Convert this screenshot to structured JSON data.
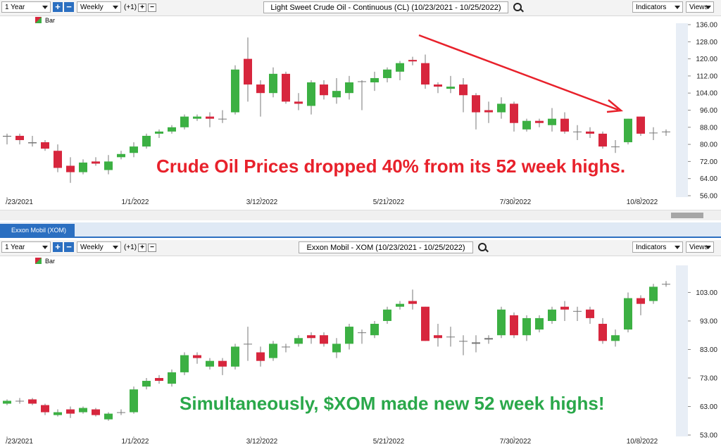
{
  "ui": {
    "period": "1 Year",
    "interval": "Weekly",
    "offset": "(+1)",
    "indicators": "Indicators",
    "views": "Views",
    "tab": "Exxon Mobil (XOM)"
  },
  "chart_data": [
    {
      "type": "candlestick",
      "title": "Light Sweet Crude Oil - Continuous (CL) (10/23/2021 - 10/25/2022)",
      "annotation": "Crude Oil Prices dropped 40% from its 52 week highs.",
      "series_name": "Bar",
      "up_color": "#3cb043",
      "down_color": "#d7263d",
      "categories": [
        "/23/2021",
        null,
        null,
        null,
        null,
        null,
        null,
        null,
        null,
        null,
        "1/1/2022",
        null,
        null,
        null,
        null,
        null,
        null,
        null,
        null,
        null,
        "3/12/2022",
        null,
        null,
        null,
        null,
        null,
        null,
        null,
        null,
        null,
        "5/21/2022",
        null,
        null,
        null,
        null,
        null,
        null,
        null,
        null,
        null,
        "7/30/2022",
        null,
        null,
        null,
        null,
        null,
        null,
        null,
        null,
        null,
        "10/8/2022",
        null,
        null
      ],
      "open": [
        84,
        84,
        81,
        81,
        77,
        70,
        67,
        72,
        68,
        74,
        76,
        79,
        85,
        86,
        88,
        92,
        93,
        92,
        95,
        120,
        108,
        104,
        113,
        100,
        98,
        108,
        102,
        104,
        109.5,
        109,
        111,
        114,
        119.5,
        118,
        108,
        106,
        108,
        103,
        96,
        95,
        99,
        87,
        91,
        89,
        92,
        86,
        86,
        85,
        79,
        81,
        93,
        85.5,
        86
      ],
      "high": [
        85,
        85,
        84,
        82,
        80,
        74,
        73,
        74,
        75,
        77,
        81,
        85,
        87,
        89,
        94,
        94,
        95,
        96,
        117,
        130,
        110,
        116,
        114,
        104,
        110,
        110,
        111,
        112,
        110,
        114,
        116,
        119,
        121,
        122,
        109,
        112,
        111,
        104,
        100,
        102,
        100,
        92,
        92,
        97,
        95,
        89,
        88,
        86,
        82,
        92,
        93,
        88,
        87
      ],
      "low": [
        80,
        80,
        79,
        77,
        67,
        62,
        66,
        70,
        66,
        73,
        74,
        78,
        83,
        85,
        87,
        91,
        88,
        90,
        94,
        100,
        93,
        102,
        99,
        96,
        94,
        101,
        99,
        101,
        96,
        105,
        109,
        110,
        117,
        106,
        104,
        104,
        95,
        87,
        90,
        92,
        86,
        86,
        88,
        86,
        85,
        82,
        83,
        78,
        76,
        80,
        84,
        82,
        84
      ],
      "close": [
        83.6,
        82,
        80.5,
        78,
        69,
        67,
        71.5,
        71,
        72,
        75.5,
        79,
        84,
        86,
        88,
        93,
        93,
        92,
        92,
        115,
        108,
        104,
        113,
        100,
        99,
        109,
        103,
        105,
        109,
        109.5,
        111,
        115,
        118,
        118.8,
        108,
        107,
        107,
        103,
        95,
        95,
        99,
        90,
        91,
        90,
        92,
        86,
        86,
        85,
        79,
        79,
        92,
        85,
        85.5,
        86
      ],
      "ylim": [
        56,
        136
      ],
      "yticks": [
        {
          "value": 56,
          "label": "56.00"
        },
        {
          "value": 64,
          "label": "64.00"
        },
        {
          "value": 72,
          "label": "72.00"
        },
        {
          "value": 80,
          "label": "80.00"
        },
        {
          "value": 88,
          "label": "88.00"
        },
        {
          "value": 96,
          "label": "96.00"
        },
        {
          "value": 104,
          "label": "104.00"
        },
        {
          "value": 112,
          "label": "112.00"
        },
        {
          "value": 120,
          "label": "120.00"
        },
        {
          "value": 128,
          "label": "128.00"
        },
        {
          "value": 136,
          "label": "136.00"
        }
      ]
    },
    {
      "type": "candlestick",
      "title": "Exxon Mobil - XOM (10/23/2021 - 10/25/2022)",
      "annotation": "Simultaneously, $XOM made new 52 week highs!",
      "series_name": "Bar",
      "up_color": "#3cb043",
      "down_color": "#d7263d",
      "categories": [
        "/23/2021",
        null,
        null,
        null,
        null,
        null,
        null,
        null,
        null,
        null,
        "1/1/2022",
        null,
        null,
        null,
        null,
        null,
        null,
        null,
        null,
        null,
        "3/12/2022",
        null,
        null,
        null,
        null,
        null,
        null,
        null,
        null,
        null,
        "5/21/2022",
        null,
        null,
        null,
        null,
        null,
        null,
        null,
        null,
        null,
        "7/30/2022",
        null,
        null,
        null,
        null,
        null,
        null,
        null,
        null,
        null,
        "10/8/2022",
        null,
        null
      ],
      "open": [
        64,
        65,
        65.5,
        63.5,
        60,
        62,
        61,
        62,
        58.5,
        61,
        61,
        70,
        73,
        71,
        75,
        81,
        77,
        79,
        77,
        85,
        82,
        80,
        84,
        85,
        88,
        88,
        82,
        85,
        89,
        88,
        93,
        98,
        100,
        98,
        88,
        87.5,
        86,
        85.5,
        86.5,
        88,
        95,
        88,
        90,
        93,
        98,
        96.5,
        97,
        92,
        86,
        90,
        101,
        100,
        106
      ],
      "high": [
        65.5,
        66,
        66,
        64,
        62,
        63,
        63,
        62.5,
        61,
        62,
        70,
        73,
        74,
        76,
        82,
        82,
        80,
        80,
        85,
        91,
        84,
        86,
        85,
        88,
        89,
        89,
        87,
        92,
        90,
        93,
        98,
        100,
        104,
        98,
        92,
        91,
        88,
        88,
        88,
        98,
        96,
        95,
        95,
        98,
        100,
        98,
        98,
        94,
        90,
        103,
        102,
        106,
        107
      ],
      "low": [
        63.5,
        64,
        63.5,
        60,
        59.5,
        59,
        60.5,
        59.5,
        58,
        60,
        60.5,
        69,
        71,
        70,
        74,
        78,
        76,
        74,
        76,
        79,
        77,
        79,
        82,
        84,
        85,
        84,
        80,
        83,
        85,
        87,
        92,
        97,
        97,
        86,
        84,
        84,
        81,
        82,
        85,
        87,
        87,
        86,
        89,
        92,
        93,
        93,
        92,
        85,
        84,
        89,
        95,
        99,
        105
      ],
      "close": [
        65,
        65,
        64,
        61,
        61,
        60.5,
        62.5,
        60,
        60.5,
        61,
        69,
        72,
        72,
        75,
        81,
        80,
        79,
        77,
        84,
        85,
        79,
        85,
        84,
        87,
        87,
        85,
        85,
        91,
        89,
        92,
        97,
        99,
        99,
        86,
        87,
        87.5,
        86,
        85,
        87,
        97,
        88,
        94,
        94,
        97,
        97,
        96.5,
        94,
        86,
        88,
        101,
        99,
        105,
        106
      ],
      "ylim": [
        53,
        112
      ],
      "yticks": [
        {
          "value": 53,
          "label": "53.00"
        },
        {
          "value": 63,
          "label": "63.00"
        },
        {
          "value": 73,
          "label": "73.00"
        },
        {
          "value": 83,
          "label": "83.00"
        },
        {
          "value": 93,
          "label": "93.00"
        },
        {
          "value": 103,
          "label": "103.00"
        }
      ]
    }
  ]
}
